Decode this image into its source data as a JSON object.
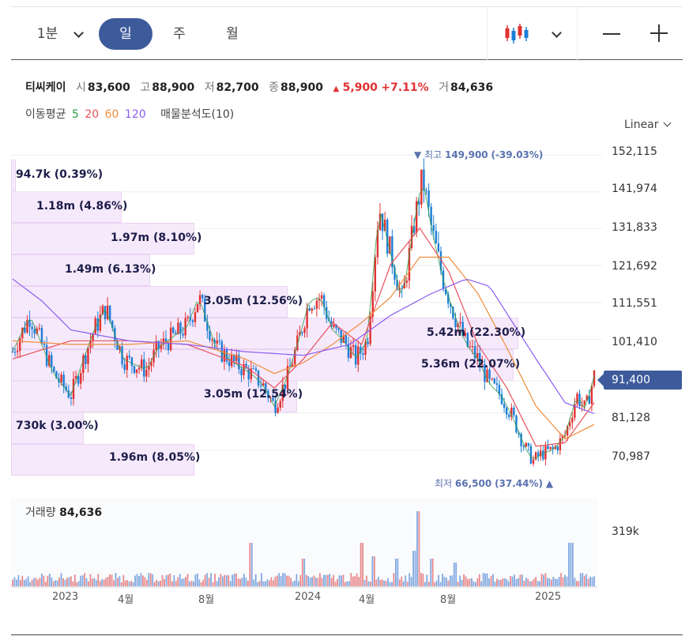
{
  "toolbar": {
    "periods": [
      {
        "label": "1분",
        "active": false
      },
      {
        "label": "일",
        "active": true
      },
      {
        "label": "주",
        "active": false
      },
      {
        "label": "월",
        "active": false
      }
    ],
    "chart_type_icon": "candlestick-icon",
    "zoom_out_icon": "minus-icon",
    "zoom_in_icon": "plus-icon"
  },
  "stock": {
    "name": "티씨케이",
    "open_label": "시",
    "open": "83,600",
    "high_label": "고",
    "high": "88,900",
    "low_label": "저",
    "low": "82,700",
    "close_label": "종",
    "close": "88,900",
    "change_arrow": "▲",
    "change": "5,900",
    "change_pct": "+7.11%",
    "volume_label": "거",
    "volume": "84,636"
  },
  "indicators": {
    "ma_label": "이동평균",
    "ma_periods": [
      {
        "label": "5",
        "color": "#2f9e44"
      },
      {
        "label": "20",
        "color": "#e8505b"
      },
      {
        "label": "60",
        "color": "#f08c3a"
      },
      {
        "label": "120",
        "color": "#8a5cf0"
      }
    ],
    "vp_label": "매물분석도(10)"
  },
  "scale": {
    "label": "Linear"
  },
  "colors": {
    "accent": "#3d5b9b",
    "up": "#e03131",
    "down": "#1c7ed6",
    "volume_profile": "#f6e9fb"
  },
  "chart_data": {
    "type": "candlestick",
    "y_ticks": [
      "152,115",
      "141,974",
      "131,833",
      "121,692",
      "111,551",
      "101,410",
      "81,128",
      "70,987"
    ],
    "ylim": [
      65000,
      153000
    ],
    "current_price": "91,400",
    "current_price_value": 91400,
    "high_marker": {
      "arrow": "▼",
      "label": "최고",
      "value": "149,900",
      "pct": "(-39.03%)",
      "y": 149900,
      "t": 0.705
    },
    "low_marker": {
      "label": "최저",
      "value": "66,500",
      "pct": "(37.44%)",
      "arrow": "▲",
      "y": 66500,
      "t": 0.895
    },
    "x_ticks": [
      {
        "label": "2023",
        "t": 0.092
      },
      {
        "label": "4월",
        "t": 0.198
      },
      {
        "label": "8월",
        "t": 0.336
      },
      {
        "label": "2024",
        "t": 0.508
      },
      {
        "label": "4월",
        "t": 0.61
      },
      {
        "label": "8월",
        "t": 0.752
      },
      {
        "label": "2025",
        "t": 0.923
      }
    ],
    "price_path": [
      [
        0,
        98000
      ],
      [
        0.03,
        108000
      ],
      [
        0.07,
        92000
      ],
      [
        0.1,
        86000
      ],
      [
        0.14,
        104000
      ],
      [
        0.16,
        110000
      ],
      [
        0.19,
        96000
      ],
      [
        0.23,
        93000
      ],
      [
        0.25,
        99000
      ],
      [
        0.3,
        105000
      ],
      [
        0.32,
        113000
      ],
      [
        0.35,
        99000
      ],
      [
        0.38,
        95000
      ],
      [
        0.41,
        92000
      ],
      [
        0.43,
        89000
      ],
      [
        0.45,
        83000
      ],
      [
        0.47,
        90000
      ],
      [
        0.49,
        100000
      ],
      [
        0.51,
        112000
      ],
      [
        0.53,
        113000
      ],
      [
        0.55,
        104000
      ],
      [
        0.57,
        101000
      ],
      [
        0.59,
        96000
      ],
      [
        0.61,
        101000
      ],
      [
        0.63,
        138000
      ],
      [
        0.65,
        125000
      ],
      [
        0.67,
        112000
      ],
      [
        0.69,
        133000
      ],
      [
        0.705,
        146000
      ],
      [
        0.72,
        132000
      ],
      [
        0.74,
        118000
      ],
      [
        0.76,
        108000
      ],
      [
        0.78,
        100000
      ],
      [
        0.8,
        96000
      ],
      [
        0.82,
        89000
      ],
      [
        0.84,
        86000
      ],
      [
        0.86,
        80000
      ],
      [
        0.88,
        72000
      ],
      [
        0.895,
        68000
      ],
      [
        0.91,
        70000
      ],
      [
        0.93,
        71000
      ],
      [
        0.95,
        75000
      ],
      [
        0.97,
        86000
      ],
      [
        0.985,
        82000
      ],
      [
        1,
        91400
      ]
    ],
    "ma_paths": [
      {
        "name": "20",
        "color": "#e8505b",
        "points": [
          [
            0,
            96000
          ],
          [
            0.1,
            101000
          ],
          [
            0.2,
            101000
          ],
          [
            0.3,
            100000
          ],
          [
            0.4,
            94000
          ],
          [
            0.45,
            88000
          ],
          [
            0.5,
            96000
          ],
          [
            0.55,
            106000
          ],
          [
            0.6,
            100000
          ],
          [
            0.65,
            122000
          ],
          [
            0.7,
            132000
          ],
          [
            0.75,
            120000
          ],
          [
            0.8,
            100000
          ],
          [
            0.85,
            88000
          ],
          [
            0.9,
            72000
          ],
          [
            0.95,
            73000
          ],
          [
            1,
            84000
          ]
        ]
      },
      {
        "name": "60",
        "color": "#f08c3a",
        "points": [
          [
            0,
            101000
          ],
          [
            0.1,
            100000
          ],
          [
            0.2,
            100000
          ],
          [
            0.3,
            101000
          ],
          [
            0.4,
            96000
          ],
          [
            0.45,
            92000
          ],
          [
            0.5,
            95000
          ],
          [
            0.55,
            100000
          ],
          [
            0.6,
            106000
          ],
          [
            0.65,
            113000
          ],
          [
            0.7,
            124000
          ],
          [
            0.75,
            124000
          ],
          [
            0.8,
            114000
          ],
          [
            0.85,
            99000
          ],
          [
            0.9,
            83000
          ],
          [
            0.95,
            74000
          ],
          [
            1,
            78000
          ]
        ]
      },
      {
        "name": "120",
        "color": "#8a5cf0",
        "points": [
          [
            0,
            118000
          ],
          [
            0.05,
            112000
          ],
          [
            0.1,
            104000
          ],
          [
            0.2,
            101000
          ],
          [
            0.3,
            100000
          ],
          [
            0.4,
            98000
          ],
          [
            0.5,
            97000
          ],
          [
            0.58,
            100000
          ],
          [
            0.65,
            108000
          ],
          [
            0.72,
            114000
          ],
          [
            0.78,
            118000
          ],
          [
            0.82,
            116000
          ],
          [
            0.86,
            106000
          ],
          [
            0.9,
            96000
          ],
          [
            0.95,
            84000
          ],
          [
            1,
            81000
          ]
        ]
      }
    ],
    "volume_profile": [
      {
        "label": "94.7k (0.39%)",
        "volume_pct": 0.39,
        "price_from": 146000,
        "price_to": 152000
      },
      {
        "label": "1.18m (4.86%)",
        "volume_pct": 4.86,
        "price_from": 138000,
        "price_to": 146000
      },
      {
        "label": "1.97m (8.10%)",
        "volume_pct": 8.1,
        "price_from": 130000,
        "price_to": 138000
      },
      {
        "label": "1.49m (6.13%)",
        "volume_pct": 6.13,
        "price_from": 122000,
        "price_to": 130000
      },
      {
        "label": "3.05m (12.56%)",
        "volume_pct": 12.56,
        "price_from": 114000,
        "price_to": 122000
      },
      {
        "label": "5.42m (22.30%)",
        "volume_pct": 22.3,
        "price_from": 106000,
        "price_to": 114000
      },
      {
        "label": "5.36m (22.07%)",
        "volume_pct": 22.07,
        "price_from": 98000,
        "price_to": 106000
      },
      {
        "label": "3.05m (12.54%)",
        "volume_pct": 12.54,
        "price_from": 90000,
        "price_to": 98000
      },
      {
        "label": "730k (3.00%)",
        "volume_pct": 3.0,
        "price_from": 82000,
        "price_to": 90000
      },
      {
        "label": "1.96m (8.05%)",
        "volume_pct": 8.05,
        "price_from": 74000,
        "price_to": 82000
      }
    ],
    "volume": {
      "title_label": "거래량",
      "current": "84,636",
      "axis_label": "319k",
      "spikes": [
        {
          "t": 0.41,
          "v": 0.55
        },
        {
          "t": 0.5,
          "v": 0.35
        },
        {
          "t": 0.6,
          "v": 0.55
        },
        {
          "t": 0.62,
          "v": 0.38
        },
        {
          "t": 0.66,
          "v": 0.35
        },
        {
          "t": 0.69,
          "v": 0.45
        },
        {
          "t": 0.697,
          "v": 0.95
        },
        {
          "t": 0.72,
          "v": 0.35
        },
        {
          "t": 0.76,
          "v": 0.3
        },
        {
          "t": 0.96,
          "v": 0.55
        }
      ]
    }
  }
}
